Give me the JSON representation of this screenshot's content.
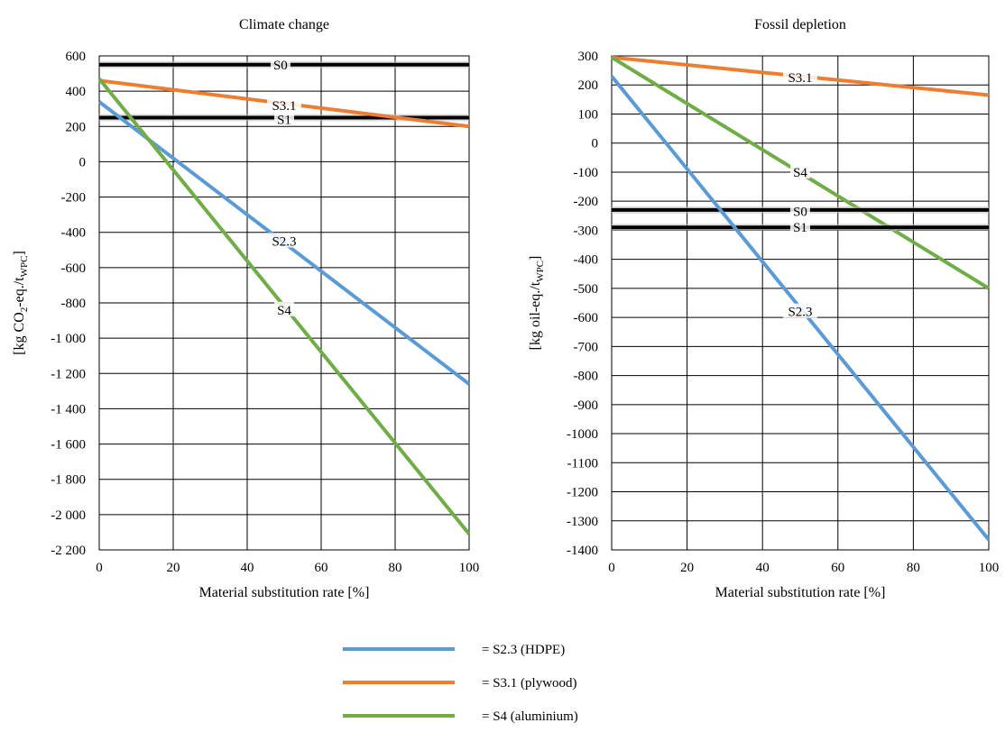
{
  "legend": [
    {
      "key": "s23",
      "text": "= S2.3 (HDPE)",
      "color": "#5b9bd5"
    },
    {
      "key": "s31",
      "text": "= S3.1 (plywood)",
      "color": "#ed7d31"
    },
    {
      "key": "s4",
      "text": "= S4 (aluminium)",
      "color": "#70ad47"
    }
  ],
  "chart_data": [
    {
      "type": "line",
      "title": "Climate change",
      "xlabel": "Material substitution rate [%]",
      "ylabel": "[kg CO2-eq./tWPC]",
      "ylabel_parts": {
        "a": "[kg CO",
        "sub1": "2",
        "b": "-eq./t",
        "sub2": "WPC",
        "c": "]"
      },
      "xlim": [
        0,
        100
      ],
      "ylim": [
        -2200,
        600
      ],
      "x_ticks": [
        0,
        20,
        40,
        60,
        80,
        100
      ],
      "x_tick_labels": [
        "0",
        "20",
        "40",
        "60",
        "80",
        "100"
      ],
      "y_ticks": [
        600,
        400,
        200,
        0,
        -200,
        -400,
        -600,
        -800,
        -1000,
        -1200,
        -1400,
        -1600,
        -1800,
        -2000,
        -2200
      ],
      "y_tick_labels": [
        "600",
        "400",
        "200",
        "0",
        "-200",
        "-400",
        "-600",
        "-800",
        "-1 000",
        "-1 200",
        "-1 400",
        "-1 600",
        "-1 800",
        "-2 000",
        "-2 200"
      ],
      "grid": true,
      "series": [
        {
          "key": "s0",
          "name": "S0",
          "color": "#000000",
          "x": [
            0,
            100
          ],
          "y": [
            550,
            550
          ],
          "label": "S0",
          "label_at": {
            "x": 49,
            "y": 550
          }
        },
        {
          "key": "s1",
          "name": "S1",
          "color": "#000000",
          "x": [
            0,
            100
          ],
          "y": [
            250,
            250
          ],
          "label": "S1",
          "label_at": {
            "x": 50,
            "y": 240
          }
        },
        {
          "key": "s31",
          "name": "S3.1",
          "color": "#ed7d31",
          "x": [
            0,
            100
          ],
          "y": [
            460,
            200
          ],
          "label": "S3.1",
          "label_at": {
            "x": 50,
            "y": 320
          }
        },
        {
          "key": "s23",
          "name": "S2.3",
          "color": "#5b9bd5",
          "x": [
            0,
            100
          ],
          "y": [
            340,
            -1260
          ],
          "label": "S2.3",
          "label_at": {
            "x": 50,
            "y": -450
          }
        },
        {
          "key": "s4",
          "name": "S4",
          "color": "#70ad47",
          "x": [
            0,
            100
          ],
          "y": [
            470,
            -2110
          ],
          "label": "S4",
          "label_at": {
            "x": 50,
            "y": -840
          }
        }
      ]
    },
    {
      "type": "line",
      "title": "Fossil depletion",
      "xlabel": "Material substitution rate [%]",
      "ylabel": "[kg oil-eq./tWPC]",
      "ylabel_parts": {
        "a": "[kg oil-eq./t",
        "sub1": "WPC",
        "b": "]",
        "sub2": "",
        "c": ""
      },
      "xlim": [
        0,
        100
      ],
      "ylim": [
        -1400,
        300
      ],
      "x_ticks": [
        0,
        20,
        40,
        60,
        80,
        100
      ],
      "x_tick_labels": [
        "0",
        "20",
        "40",
        "60",
        "80",
        "100"
      ],
      "y_ticks": [
        300,
        200,
        100,
        0,
        -100,
        -200,
        -300,
        -400,
        -500,
        -600,
        -700,
        -800,
        -900,
        -1000,
        -1100,
        -1200,
        -1300,
        -1400
      ],
      "y_tick_labels": [
        "300",
        "200",
        "100",
        "0",
        "-100",
        "-200",
        "-300",
        "-400",
        "-500",
        "-600",
        "-700",
        "-800",
        "-900",
        "-1000",
        "-1100",
        "-1200",
        "-1300",
        "-1400"
      ],
      "grid": true,
      "series": [
        {
          "key": "s31",
          "name": "S3.1",
          "color": "#ed7d31",
          "x": [
            0,
            100
          ],
          "y": [
            295,
            165
          ],
          "label": "S3.1",
          "label_at": {
            "x": 50,
            "y": 225
          }
        },
        {
          "key": "s4",
          "name": "S4",
          "color": "#70ad47",
          "x": [
            0,
            100
          ],
          "y": [
            295,
            -500
          ],
          "label": "S4",
          "label_at": {
            "x": 50,
            "y": -100
          }
        },
        {
          "key": "s0",
          "name": "S0",
          "color": "#000000",
          "x": [
            0,
            100
          ],
          "y": [
            -230,
            -230
          ],
          "label": "S0",
          "label_at": {
            "x": 50,
            "y": -235
          }
        },
        {
          "key": "s1",
          "name": "S1",
          "color": "#000000",
          "x": [
            0,
            100
          ],
          "y": [
            -290,
            -290
          ],
          "label": "S1",
          "label_at": {
            "x": 50,
            "y": -290
          }
        },
        {
          "key": "s23",
          "name": "S2.3",
          "color": "#5b9bd5",
          "x": [
            0,
            100
          ],
          "y": [
            230,
            -1365
          ],
          "label": "S2.3",
          "label_at": {
            "x": 50,
            "y": -580
          }
        }
      ]
    }
  ]
}
